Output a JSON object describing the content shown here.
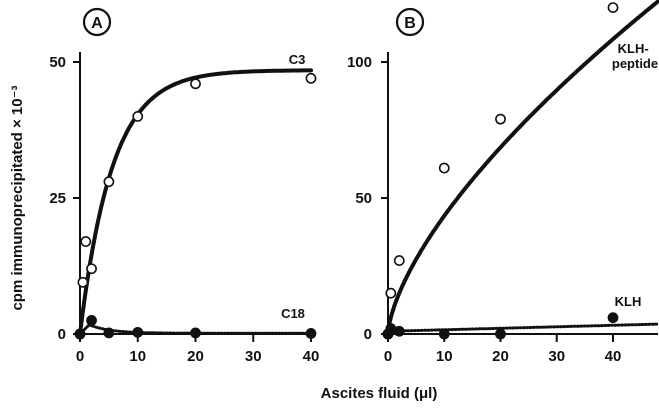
{
  "chart_data": [
    {
      "panel": "A",
      "type": "scatter",
      "xlim": [
        0,
        40
      ],
      "ylim": [
        0,
        50
      ],
      "x_ticks": [
        0,
        10,
        20,
        30,
        40
      ],
      "y_ticks": [
        0,
        25,
        50
      ],
      "series": [
        {
          "name": "C3",
          "marker": "open-circle",
          "line": "solid",
          "x": [
            0,
            0.5,
            1,
            2,
            5,
            10,
            20,
            40
          ],
          "y": [
            0,
            9.5,
            17,
            12,
            28,
            40,
            46,
            47
          ]
        },
        {
          "name": "C18",
          "marker": "filled-circle",
          "line": "dotted",
          "x": [
            0,
            2,
            5,
            10,
            20,
            40
          ],
          "y": [
            0,
            2.5,
            0.2,
            0.3,
            0.2,
            0.1
          ]
        }
      ]
    },
    {
      "panel": "B",
      "type": "scatter",
      "xlim": [
        0,
        48
      ],
      "ylim": [
        0,
        100
      ],
      "x_ticks": [
        0,
        10,
        20,
        30,
        40
      ],
      "y_ticks": [
        0,
        50,
        100
      ],
      "series": [
        {
          "name": "KLH-\npeptide",
          "marker": "open-circle",
          "line": "solid",
          "x": [
            0,
            0.5,
            2,
            10,
            20,
            40
          ],
          "y": [
            0,
            15,
            27,
            61,
            79,
            120
          ]
        },
        {
          "name": "KLH",
          "marker": "filled-circle",
          "line": "dotted",
          "x": [
            0,
            0.5,
            2,
            10,
            20,
            40
          ],
          "y": [
            0,
            2,
            1,
            0,
            0,
            6
          ]
        }
      ]
    }
  ],
  "shared": {
    "ylabel": "cpm immunoprecipitated × 10⁻³",
    "xlabel": "Ascites fluid (μl)"
  },
  "colors": {
    "ink": "#111111",
    "background": "#ffffff"
  }
}
